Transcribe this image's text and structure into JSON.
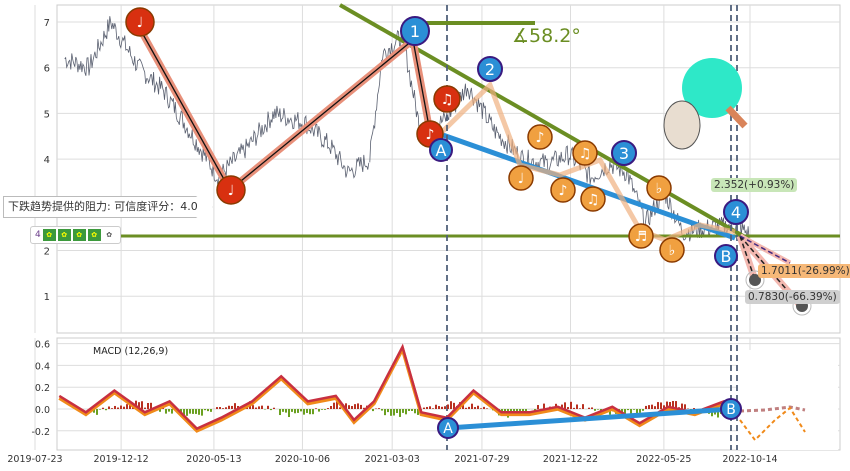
{
  "tooltip": {
    "text": "下跌趋势提供的阻力: 可信度评分：4.0"
  },
  "rating": {
    "score": "4",
    "icons": [
      "frog",
      "frog",
      "frog",
      "frog",
      "frog-outline"
    ]
  },
  "angle_label": "∡58.2°",
  "price_labels": {
    "current": "2.352(+0.93%)",
    "target1": "1.7011(-26.99%)",
    "target2": "0.7830(-66.39%)"
  },
  "wave_labels": [
    "1",
    "2",
    "3",
    "4",
    "A",
    "B"
  ],
  "macd": {
    "title": "MACD (12,26,9)",
    "wave_labels": [
      "A",
      "B"
    ]
  },
  "colors": {
    "trend": "#6b8e23",
    "blue": "#2b8fd6",
    "orange": "#f0a040",
    "red": "#d83010",
    "salmon": "#e8907a"
  },
  "chart_data": {
    "type": "line",
    "x_ticks": [
      "2019-07-23",
      "2019-12-12",
      "2020-05-13",
      "2020-10-06",
      "2021-03-03",
      "2021-07-29",
      "2021-12-22",
      "2022-05-25",
      "2022-10-14"
    ],
    "y_ticks": [
      "1",
      "2",
      "4",
      "5",
      "6",
      "7"
    ],
    "ylim": [
      0.5,
      7.4
    ],
    "macd_y_ticks": [
      "0.6",
      "0.4",
      "0.2",
      "0.0",
      "-0.2"
    ],
    "macd_ylim": [
      -0.3,
      0.65
    ],
    "price_keypoints": [
      [
        "2019-09-10",
        6.2
      ],
      [
        "2019-10-20",
        6.0
      ],
      [
        "2019-11-25",
        7.0
      ],
      [
        "2020-01-10",
        6.0
      ],
      [
        "2020-02-20",
        5.5
      ],
      [
        "2020-03-25",
        4.8
      ],
      [
        "2020-05-20",
        3.6
      ],
      [
        "2020-07-10",
        4.3
      ],
      [
        "2020-08-20",
        5.0
      ],
      [
        "2020-10-10",
        4.8
      ],
      [
        "2020-11-20",
        4.3
      ],
      [
        "2020-12-20",
        3.7
      ],
      [
        "2021-01-25",
        4.0
      ],
      [
        "2021-02-15",
        6.3
      ],
      [
        "2021-03-20",
        6.7
      ],
      [
        "2021-04-20",
        4.5
      ],
      [
        "2021-06-01",
        4.9
      ],
      [
        "2021-07-05",
        5.6
      ],
      [
        "2021-08-20",
        4.6
      ],
      [
        "2021-10-05",
        4.0
      ],
      [
        "2021-11-15",
        3.9
      ],
      [
        "2021-12-20",
        4.1
      ],
      [
        "2022-01-25",
        3.6
      ],
      [
        "2022-02-25",
        3.9
      ],
      [
        "2022-03-25",
        3.7
      ],
      [
        "2022-04-25",
        2.6
      ],
      [
        "2022-05-25",
        3.3
      ],
      [
        "2022-06-25",
        2.4
      ],
      [
        "2022-08-10",
        2.5
      ],
      [
        "2022-09-20",
        2.55
      ],
      [
        "2022-10-14",
        2.35
      ]
    ],
    "macd_keypoints": [
      [
        "2019-09-01",
        0.1
      ],
      [
        "2019-10-15",
        -0.05
      ],
      [
        "2019-12-01",
        0.15
      ],
      [
        "2020-01-20",
        -0.05
      ],
      [
        "2020-03-01",
        0.05
      ],
      [
        "2020-04-15",
        -0.2
      ],
      [
        "2020-05-25",
        -0.1
      ],
      [
        "2020-07-15",
        0.05
      ],
      [
        "2020-09-01",
        0.28
      ],
      [
        "2020-10-15",
        0.05
      ],
      [
        "2020-11-30",
        0.1
      ],
      [
        "2020-12-30",
        -0.12
      ],
      [
        "2021-02-01",
        0.05
      ],
      [
        "2021-03-20",
        0.55
      ],
      [
        "2021-04-20",
        -0.05
      ],
      [
        "2021-06-01",
        -0.1
      ],
      [
        "2021-07-15",
        0.15
      ],
      [
        "2021-08-30",
        -0.05
      ],
      [
        "2021-10-15",
        -0.05
      ],
      [
        "2021-12-01",
        0.0
      ],
      [
        "2022-01-15",
        -0.1
      ],
      [
        "2022-03-01",
        0.0
      ],
      [
        "2022-04-15",
        -0.15
      ],
      [
        "2022-06-01",
        0.0
      ],
      [
        "2022-07-15",
        -0.05
      ],
      [
        "2022-09-01",
        0.05
      ],
      [
        "2022-10-05",
        -0.05
      ],
      [
        "2022-11-10",
        -0.1
      ],
      [
        "2022-12-20",
        0.02
      ],
      [
        "2023-01-20",
        -0.15
      ]
    ]
  }
}
